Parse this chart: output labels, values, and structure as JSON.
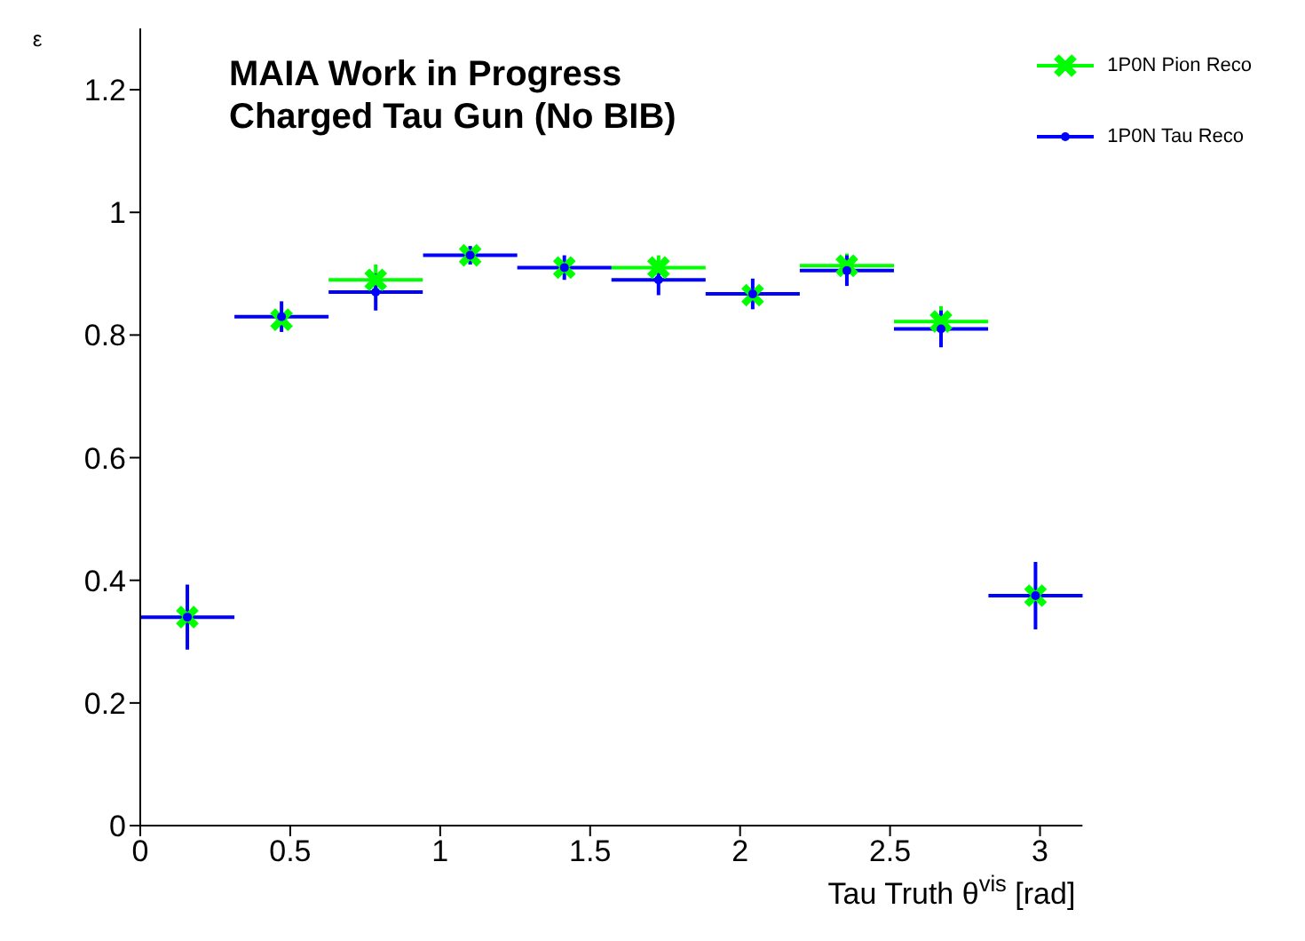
{
  "chart_data": {
    "type": "scatter",
    "title": "MAIA Work in Progress",
    "subtitle": "Charged Tau Gun (No BIB)",
    "xlabel": "Tau Truth  θ$^{vis}$ [rad]",
    "ylabel": "ε",
    "x": [
      0.157,
      0.471,
      0.785,
      1.1,
      1.414,
      1.728,
      2.042,
      2.356,
      2.67,
      2.985
    ],
    "series": [
      {
        "name": "1P0N Pion Reco",
        "color": "#00ff00",
        "marker": "cross",
        "values": [
          0.34,
          0.825,
          0.89,
          0.93,
          0.91,
          0.91,
          0.865,
          0.913,
          0.822,
          0.375
        ],
        "errors": [
          null,
          null,
          0.025,
          0.015,
          null,
          0.02,
          null,
          0.02,
          0.025,
          null
        ],
        "xerrors": [
          null,
          null,
          0.157,
          null,
          null,
          0.157,
          null,
          0.157,
          0.157,
          null
        ]
      },
      {
        "name": "1P0N Tau Reco",
        "color": "#0000ff",
        "marker": "circle",
        "values": [
          0.34,
          0.83,
          0.87,
          0.93,
          0.91,
          0.89,
          0.867,
          0.905,
          0.81,
          0.375
        ],
        "errors": [
          0.053,
          0.025,
          0.03,
          0.015,
          0.02,
          0.025,
          0.025,
          0.025,
          0.03,
          0.055
        ],
        "xerrors": [
          0.157,
          0.157,
          0.157,
          0.157,
          0.157,
          0.157,
          0.157,
          0.157,
          0.157,
          0.157
        ]
      }
    ],
    "xlim": [
      0,
      3.1416
    ],
    "xticks": [
      0,
      0.5,
      1,
      1.5,
      2,
      2.5,
      3
    ],
    "ylim": [
      0,
      1.3
    ],
    "yticks": [
      0,
      0.2,
      0.4,
      0.6,
      0.8,
      1,
      1.2
    ],
    "grid": false,
    "legend": "top right"
  }
}
